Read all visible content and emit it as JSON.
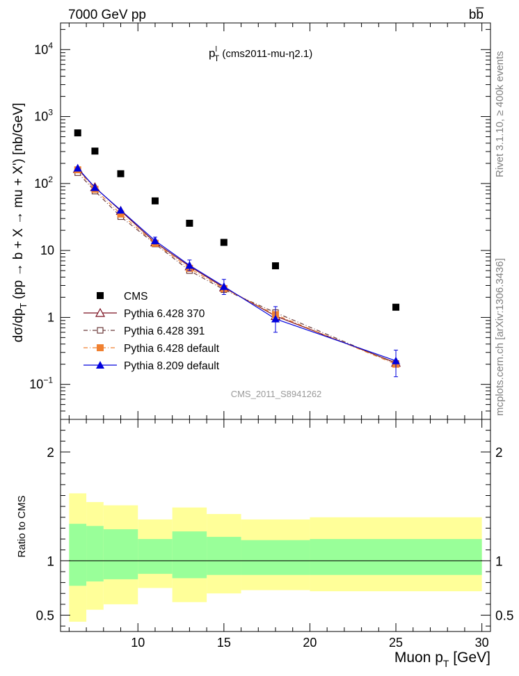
{
  "header": {
    "energy_label": "7000 GeV pp",
    "process_label": "bb̅"
  },
  "side_labels": {
    "rivet": "Rivet 3.1.10, ≥ 400k events",
    "mcplots": "mcplots.cern.ch [arXiv:1306.3436]"
  },
  "chart_data": [
    {
      "type": "scatter",
      "panel": "main",
      "title_main": "p",
      "title_sup": "l",
      "title_sub": "T",
      "title_rest": " (cms2011-mu-η2.1)",
      "watermark": "CMS_2011_S8941262",
      "ylabel": "dσ/dp_T (pp → b + X → mu + X') [nb/GeV]",
      "ylabel_parts": {
        "prefix": "dσ/dp",
        "sub": "T",
        "suffix": " (pp → b + X → mu + X') [nb/GeV]"
      },
      "yscale": "log",
      "ylim": [
        0.03,
        25000
      ],
      "xlim": [
        5.5,
        30.5
      ],
      "legend_position": "bottom-left",
      "y_tick_labels": [
        {
          "v": 0.1,
          "base": "10",
          "exp": "−1"
        },
        {
          "v": 1,
          "base": "1",
          "exp": ""
        },
        {
          "v": 10,
          "base": "10",
          "exp": ""
        },
        {
          "v": 100,
          "base": "10",
          "exp": "2"
        },
        {
          "v": 1000,
          "base": "10",
          "exp": "3"
        },
        {
          "v": 10000,
          "base": "10",
          "exp": "4"
        }
      ],
      "x": [
        6.5,
        7.5,
        9,
        11,
        13,
        15,
        18,
        25
      ],
      "series": [
        {
          "name": "CMS",
          "color": "#000000",
          "marker": "square-filled",
          "line": "none",
          "values": [
            570,
            305,
            140,
            55,
            25.5,
            13.2,
            5.9,
            1.42
          ]
        },
        {
          "name": "Pythia 6.428 370",
          "color": "#7a0f1f",
          "marker": "triangle-open",
          "line": "solid",
          "values": [
            165,
            88,
            39,
            13.2,
            5.8,
            2.8,
            1.05,
            0.21
          ]
        },
        {
          "name": "Pythia 6.428 391",
          "color": "#6b3a3a",
          "marker": "square-open",
          "line": "dashdot",
          "values": [
            145,
            77,
            32,
            12.5,
            5.0,
            2.6,
            1.18,
            0.205
          ]
        },
        {
          "name": "Pythia 6.428 default",
          "color": "#f08030",
          "marker": "square-filled",
          "line": "dashdot",
          "values": [
            160,
            82,
            35,
            12.8,
            5.4,
            2.7,
            1.1,
            0.2
          ]
        },
        {
          "name": "Pythia 8.209 default",
          "color": "#0000dd",
          "marker": "triangle-filled",
          "line": "solid",
          "values": [
            170,
            87,
            40,
            14,
            6.0,
            2.9,
            0.95,
            0.225
          ],
          "err_low": [
            0,
            0,
            0,
            1.5,
            1.0,
            0.7,
            0.35,
            0.095
          ],
          "err_high": [
            0,
            0,
            0,
            1.8,
            1.2,
            0.8,
            0.5,
            0.1
          ]
        }
      ]
    },
    {
      "type": "area",
      "panel": "ratio",
      "ylabel": "Ratio to CMS",
      "xlabel_main": "Muon p",
      "xlabel_sub": "T",
      "xlabel_unit": " [GeV]",
      "ylim": [
        0.35,
        2.3
      ],
      "xlim": [
        5.5,
        30.5
      ],
      "y_ticks": [
        0.5,
        1,
        2
      ],
      "y_tick_labels": [
        "0.5",
        "1",
        "2"
      ],
      "x_ticks": [
        10,
        15,
        20,
        25,
        30
      ],
      "x_tick_labels": [
        "10",
        "15",
        "20",
        "25",
        "30"
      ],
      "reference": 1,
      "bins": [
        {
          "lo": 6,
          "hi": 7,
          "stat": [
            0.77,
            1.34
          ],
          "total": [
            0.44,
            1.62
          ]
        },
        {
          "lo": 7,
          "hi": 8,
          "stat": [
            0.81,
            1.32
          ],
          "total": [
            0.55,
            1.54
          ]
        },
        {
          "lo": 8,
          "hi": 10,
          "stat": [
            0.83,
            1.29
          ],
          "total": [
            0.6,
            1.51
          ]
        },
        {
          "lo": 10,
          "hi": 12,
          "stat": [
            0.88,
            1.2
          ],
          "total": [
            0.75,
            1.38
          ]
        },
        {
          "lo": 12,
          "hi": 14,
          "stat": [
            0.84,
            1.27
          ],
          "total": [
            0.62,
            1.49
          ]
        },
        {
          "lo": 14,
          "hi": 16,
          "stat": [
            0.87,
            1.22
          ],
          "total": [
            0.7,
            1.43
          ]
        },
        {
          "lo": 16,
          "hi": 20,
          "stat": [
            0.87,
            1.19
          ],
          "total": [
            0.73,
            1.38
          ]
        },
        {
          "lo": 20,
          "hi": 30,
          "stat": [
            0.87,
            1.2
          ],
          "total": [
            0.72,
            1.4
          ]
        }
      ]
    }
  ]
}
